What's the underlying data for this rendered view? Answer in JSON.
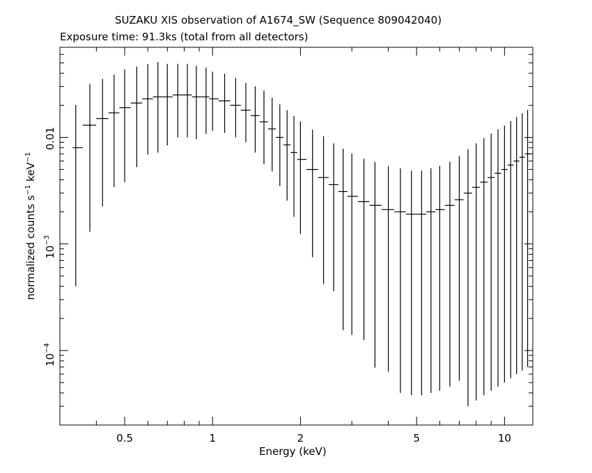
{
  "chart_data": {
    "type": "scatter",
    "title": "SUZAKU XIS observation of A1674_SW (Sequence 809042040)",
    "subtitle": "Exposure time: 91.3ks (total from all detectors)",
    "xlabel": "Energy (keV)",
    "ylabel_text": "normalized counts s",
    "ylabel_exp1": "−1",
    "ylabel_mid": " keV",
    "ylabel_exp2": "−1",
    "x_scale": "log",
    "y_scale": "log",
    "xlim": [
      0.3,
      12.5
    ],
    "ylim": [
      2e-05,
      0.07
    ],
    "x_ticks": [
      "0.5",
      "1",
      "2",
      "5",
      "10"
    ],
    "y_tick_labels": {
      "t001": "0.01",
      "t1e3": "10",
      "t1e3exp": "−3",
      "t1e4": "10",
      "t1e4exp": "−4"
    },
    "grid": false,
    "legend": "none",
    "series": [
      {
        "x": [
          0.34,
          0.38,
          0.42,
          0.46,
          0.5,
          0.55,
          0.6,
          0.65,
          0.7,
          0.76,
          0.82,
          0.88,
          0.95,
          1.0,
          1.1,
          1.2,
          1.3,
          1.4,
          1.5,
          1.6,
          1.7,
          1.8,
          1.9,
          2.0,
          2.2,
          2.4,
          2.6,
          2.8,
          3.0,
          3.3,
          3.6,
          4.0,
          4.4,
          4.8,
          5.2,
          5.6,
          6.0,
          6.5,
          7.0,
          7.5,
          8.0,
          8.5,
          9.0,
          9.5,
          10.0,
          10.5,
          11.0,
          11.5,
          12.0
        ],
        "y": [
          0.008,
          0.013,
          0.015,
          0.017,
          0.019,
          0.021,
          0.023,
          0.024,
          0.024,
          0.025,
          0.025,
          0.024,
          0.024,
          0.023,
          0.022,
          0.02,
          0.018,
          0.016,
          0.014,
          0.012,
          0.01,
          0.0085,
          0.0072,
          0.0062,
          0.005,
          0.0042,
          0.0036,
          0.0031,
          0.0028,
          0.0025,
          0.0023,
          0.0021,
          0.002,
          0.0019,
          0.0019,
          0.002,
          0.0021,
          0.0023,
          0.0026,
          0.003,
          0.0034,
          0.0038,
          0.0042,
          0.0046,
          0.005,
          0.0055,
          0.006,
          0.0065,
          0.007
        ],
        "yerr_frac": [
          0.95,
          0.9,
          0.85,
          0.8,
          0.8,
          0.75,
          0.7,
          0.7,
          0.65,
          0.6,
          0.6,
          0.6,
          0.55,
          0.5,
          0.5,
          0.5,
          0.5,
          0.55,
          0.6,
          0.6,
          0.65,
          0.7,
          0.75,
          0.8,
          0.85,
          0.9,
          0.9,
          0.95,
          0.95,
          0.95,
          0.97,
          0.97,
          0.98,
          0.98,
          0.98,
          0.98,
          0.98,
          0.98,
          0.98,
          0.99,
          0.99,
          0.99,
          0.99,
          0.99,
          0.99,
          0.99,
          0.99,
          0.99,
          0.99
        ]
      }
    ]
  }
}
